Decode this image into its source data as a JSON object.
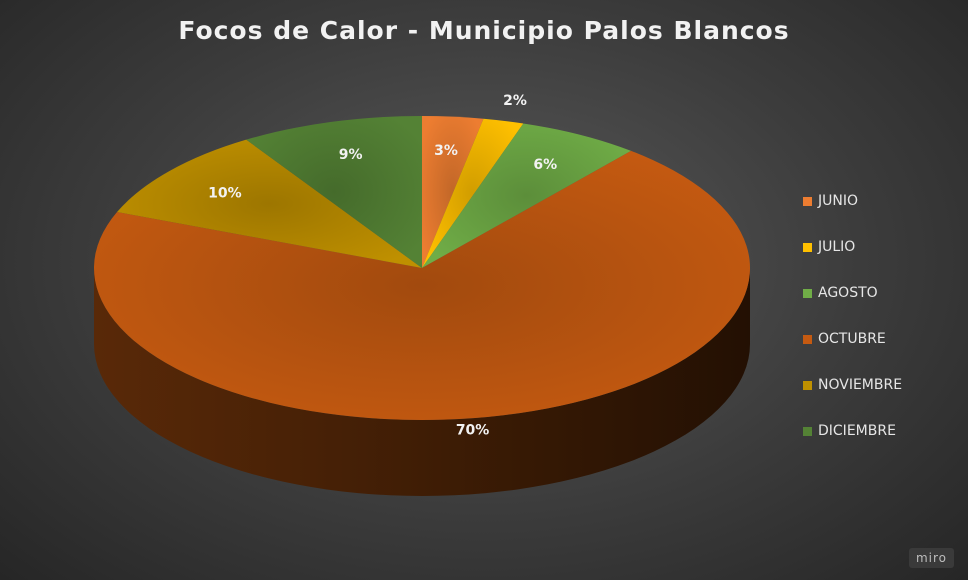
{
  "chart_data": {
    "type": "pie",
    "title": "Focos de Calor - Municipio Palos Blancos",
    "categories": [
      "JUNIO",
      "JULIO",
      "AGOSTO",
      "OCTUBRE",
      "NOVIEMBRE",
      "DICIEMBRE"
    ],
    "values": [
      3,
      2,
      6,
      70,
      10,
      9
    ],
    "labels": [
      "3%",
      "2%",
      "6%",
      "70%",
      "10%",
      "9%"
    ],
    "colors": [
      "#ed7d31",
      "#ffc000",
      "#70ad47",
      "#c55a11",
      "#bf9000",
      "#548235"
    ],
    "legend": "right",
    "style": "3d"
  },
  "watermark": "miro"
}
